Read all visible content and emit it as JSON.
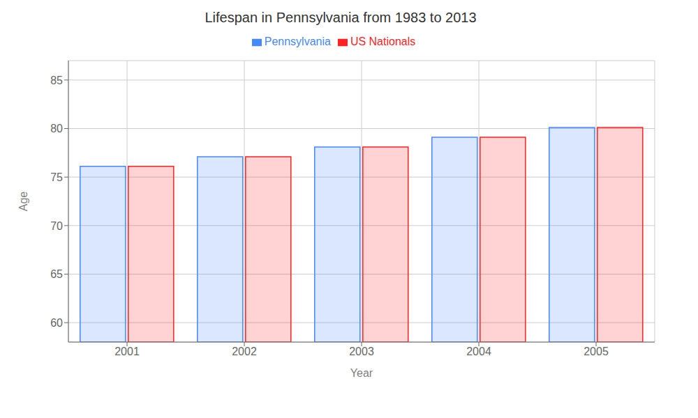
{
  "chart_data": {
    "type": "bar",
    "title": "Lifespan in Pennsylvania from 1983 to 2013",
    "x_label": "Year",
    "y_label": "Age",
    "categories": [
      "2001",
      "2002",
      "2003",
      "2004",
      "2005"
    ],
    "series": [
      {
        "name": "Pennsylvania",
        "color": "#4488ff",
        "values": [
          76.1,
          77.1,
          78.1,
          79.1,
          80.1
        ]
      },
      {
        "name": "US Nationals",
        "color": "#ff2222",
        "values": [
          76.1,
          77.1,
          78.1,
          79.1,
          80.1
        ]
      }
    ],
    "ylim": [
      58,
      87
    ],
    "yticks": [
      60,
      65,
      70,
      75,
      80,
      85
    ],
    "grid": true,
    "legend": "top"
  }
}
